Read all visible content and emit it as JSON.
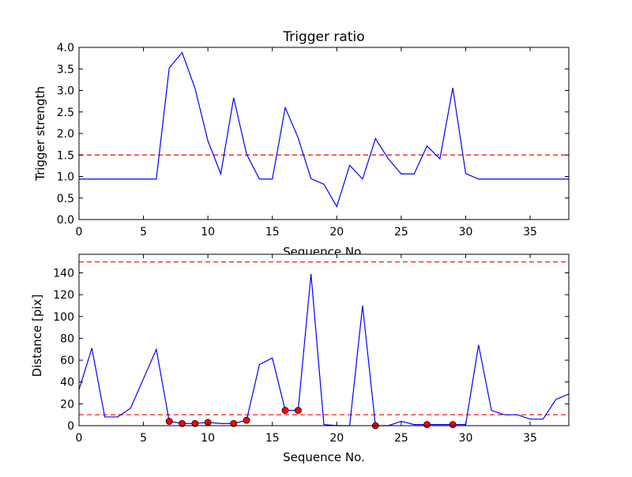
{
  "chart_data": [
    {
      "type": "line",
      "title": "Trigger ratio",
      "xlabel": "Sequence No.",
      "ylabel": "Trigger strength",
      "xlim": [
        0,
        38
      ],
      "ylim": [
        0,
        4.0
      ],
      "xticks": [
        "0",
        "5",
        "10",
        "15",
        "20",
        "25",
        "30",
        "35"
      ],
      "yticks": [
        "0.0",
        "0.5",
        "1.0",
        "1.5",
        "2.0",
        "2.5",
        "3.0",
        "3.5",
        "4.0"
      ],
      "grid": false,
      "series": [
        {
          "color": "#0000ff",
          "x": [
            0,
            1,
            2,
            3,
            4,
            5,
            6,
            7,
            8,
            9,
            10,
            11,
            12,
            13,
            14,
            15,
            16,
            17,
            18,
            19,
            20,
            21,
            22,
            23,
            24,
            25,
            26,
            27,
            28,
            29,
            30,
            31,
            32,
            33,
            34,
            35,
            36,
            37,
            38
          ],
          "values": [
            0.94,
            0.94,
            0.94,
            0.94,
            0.94,
            0.94,
            0.94,
            3.52,
            3.88,
            3.05,
            1.83,
            1.06,
            2.83,
            1.52,
            0.94,
            0.94,
            2.6,
            1.9,
            0.95,
            0.82,
            0.3,
            1.26,
            0.94,
            1.88,
            1.41,
            1.06,
            1.06,
            1.71,
            1.41,
            3.06,
            1.07,
            0.94,
            0.94,
            0.94,
            0.94,
            0.94,
            0.94,
            0.94,
            0.94
          ]
        }
      ],
      "hlines": [
        {
          "y": 1.5,
          "color": "#ff0000",
          "style": "dashed"
        }
      ]
    },
    {
      "type": "line",
      "title": "",
      "xlabel": "Sequence No.",
      "ylabel": "Distance [pix]",
      "xlim": [
        0,
        38
      ],
      "ylim": [
        0,
        157
      ],
      "xticks": [
        "0",
        "5",
        "10",
        "15",
        "20",
        "25",
        "30",
        "35"
      ],
      "yticks": [
        "0",
        "20",
        "40",
        "60",
        "80",
        "100",
        "120",
        "140"
      ],
      "grid": false,
      "series": [
        {
          "color": "#0000ff",
          "x": [
            0,
            1,
            2,
            3,
            4,
            5,
            6,
            7,
            8,
            9,
            10,
            11,
            12,
            13,
            14,
            15,
            16,
            17,
            18,
            19,
            20,
            21,
            22,
            23,
            24,
            25,
            26,
            27,
            28,
            29,
            30,
            31,
            32,
            33,
            34,
            35,
            36,
            37,
            38
          ],
          "values": [
            33,
            71,
            8,
            8,
            16,
            43,
            70,
            4,
            2,
            2,
            3,
            2,
            2,
            5,
            56,
            62,
            14,
            14,
            139,
            1,
            0,
            0,
            110,
            0,
            0,
            4,
            1,
            1,
            1,
            1,
            1,
            74,
            14,
            10,
            10,
            6,
            6,
            24,
            29
          ]
        }
      ],
      "markers": {
        "color": "#ff0000",
        "x": [
          7,
          8,
          9,
          10,
          12,
          13,
          16,
          17,
          23,
          27,
          29
        ],
        "y": [
          4,
          2,
          2,
          3,
          2,
          5,
          14,
          14,
          0,
          1,
          1
        ]
      },
      "hlines": [
        {
          "y": 150,
          "color": "#ff0000",
          "style": "dashed"
        },
        {
          "y": 10,
          "color": "#ff0000",
          "style": "dashed"
        }
      ]
    }
  ]
}
